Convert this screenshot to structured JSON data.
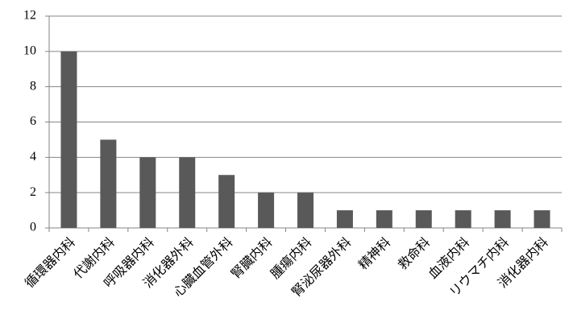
{
  "chart_data": {
    "type": "bar",
    "categories": [
      "循環器内科",
      "代謝内科",
      "呼吸器内科",
      "消化器外科",
      "心臓血管外科",
      "腎臓内科",
      "腫瘍内科",
      "腎泌尿器外科",
      "精神科",
      "救命科",
      "血液内科",
      "リウマチ内科",
      "消化器内科"
    ],
    "values": [
      10,
      5,
      4,
      4,
      3,
      2,
      2,
      1,
      1,
      1,
      1,
      1,
      1
    ],
    "color": "#595959",
    "ylim": [
      0,
      12
    ],
    "yticks": [
      0,
      2,
      4,
      6,
      8,
      10,
      12
    ],
    "grid": true
  }
}
